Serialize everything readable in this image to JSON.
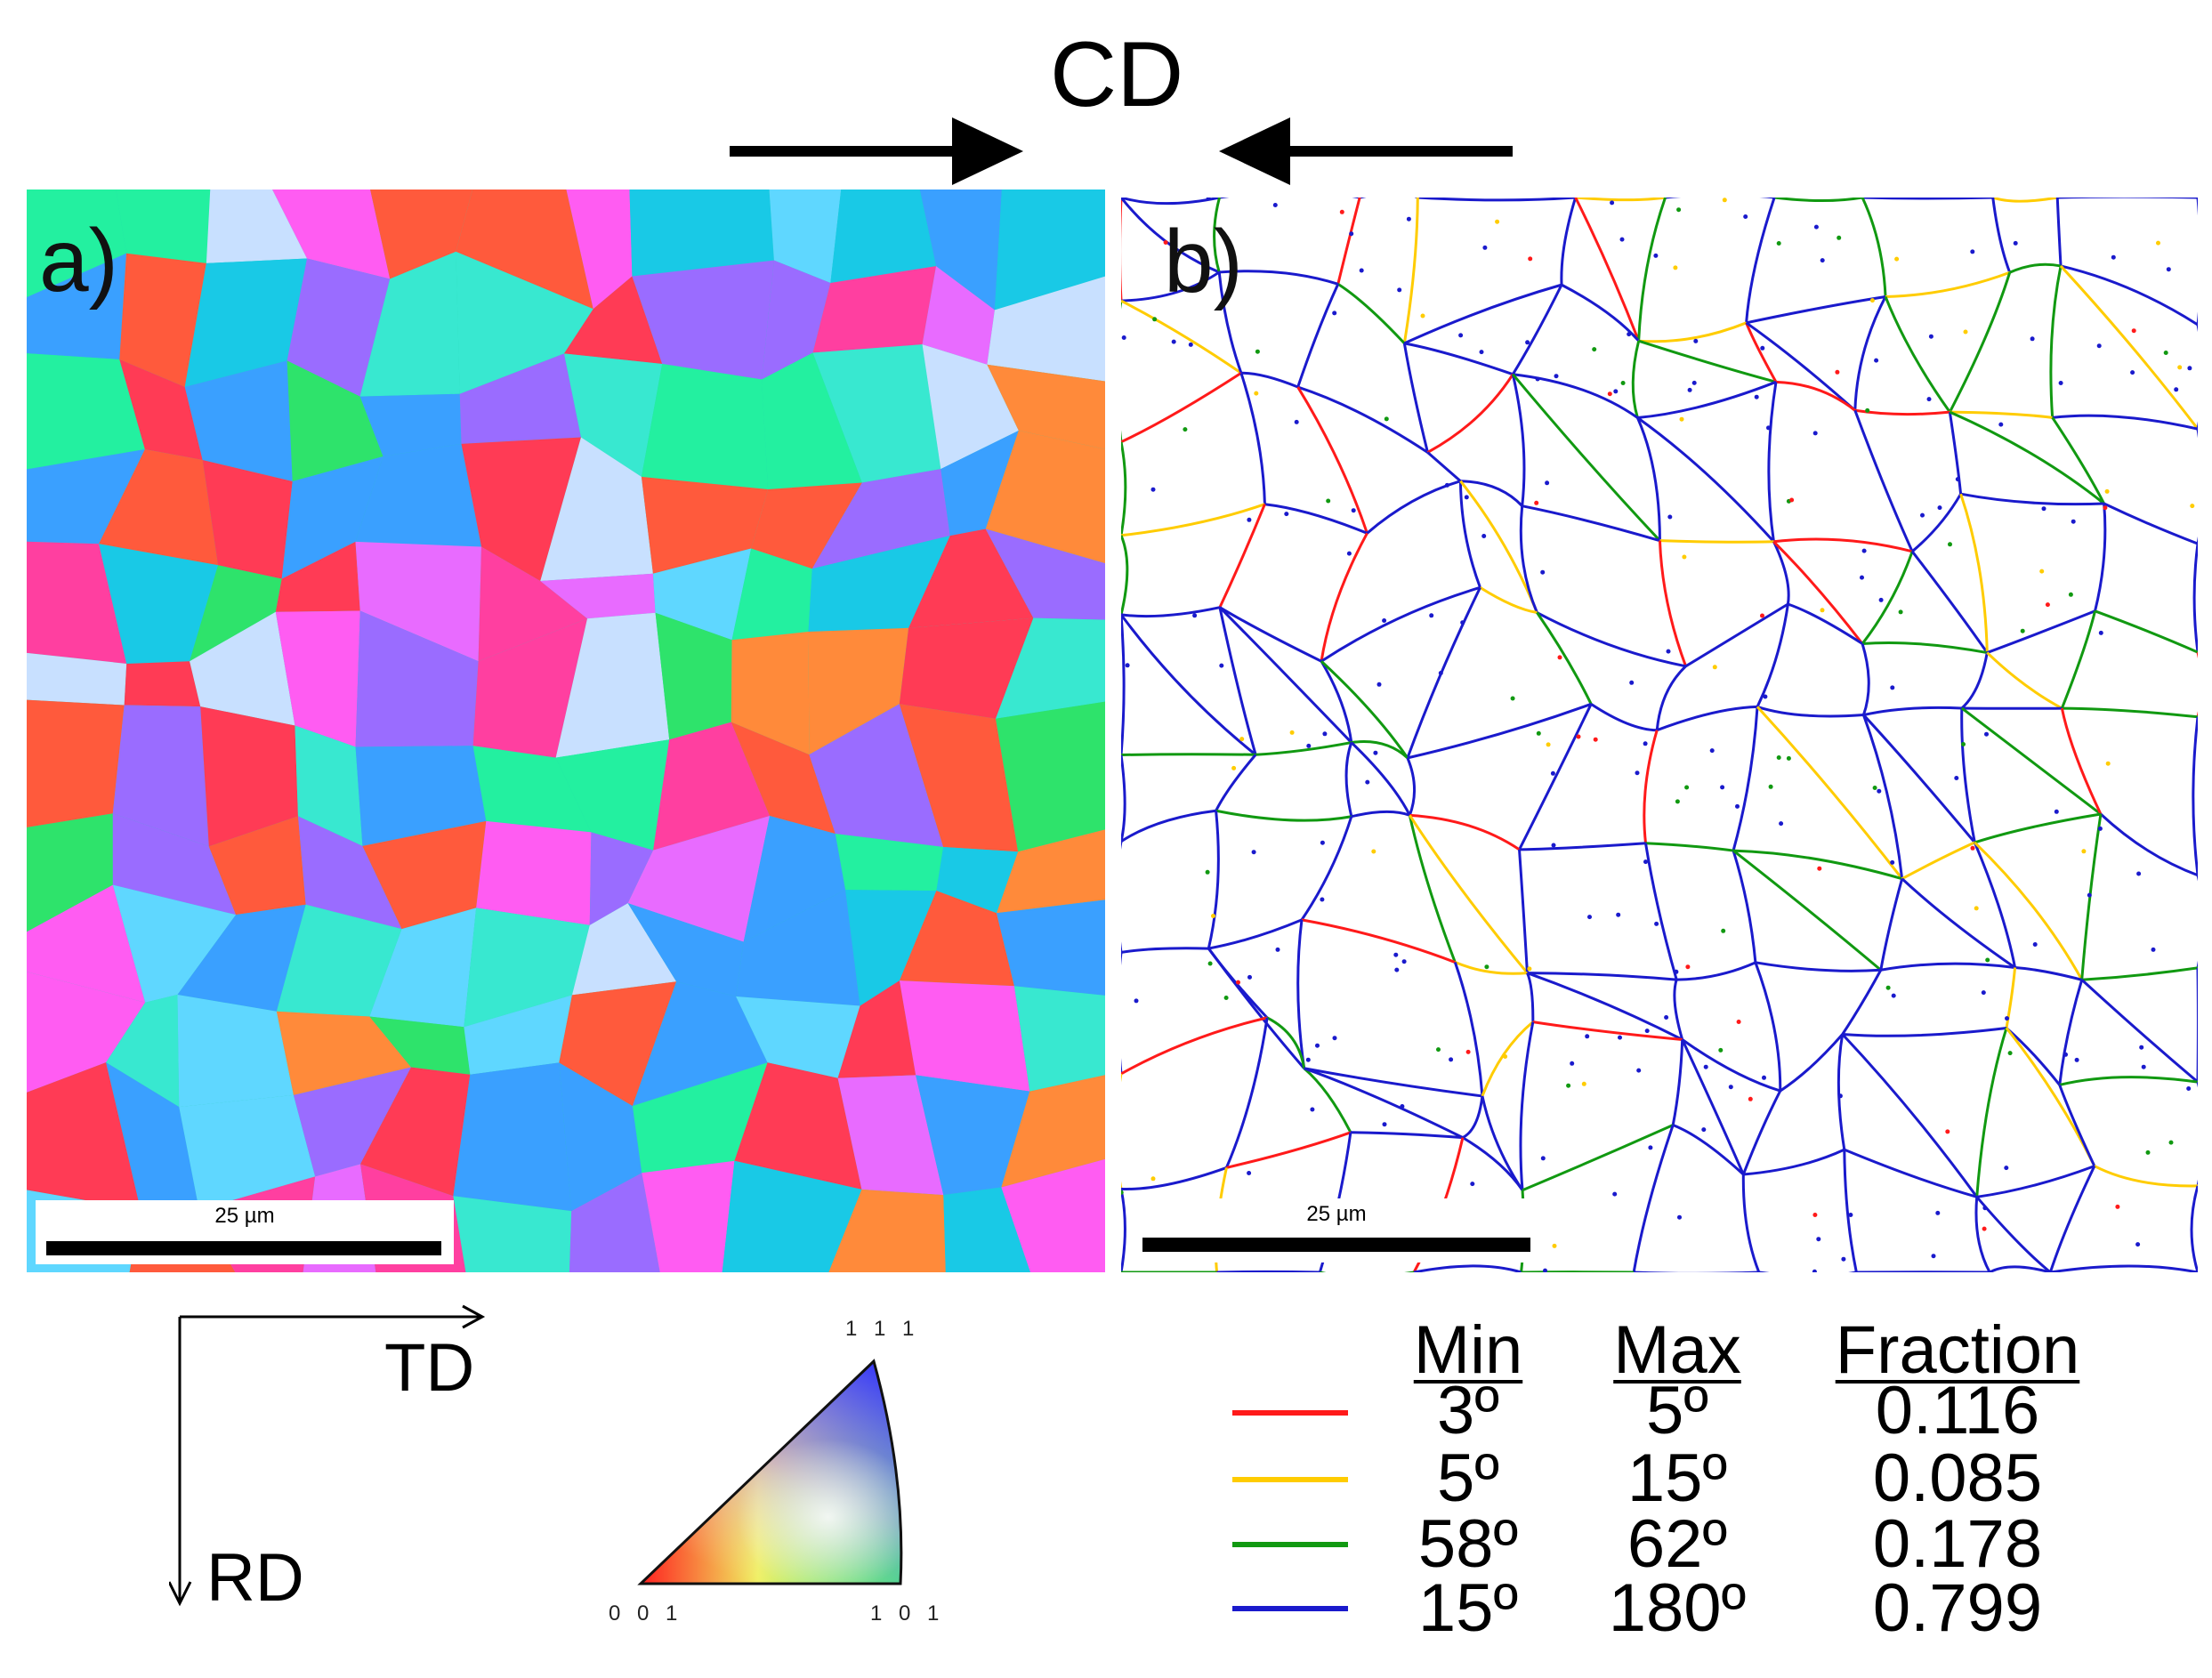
{
  "top_label": "CD",
  "panel_a": {
    "label": "a)",
    "scalebar": "25 µm",
    "grain_colors": [
      "#ff3b55",
      "#ff5a3c",
      "#2ee36b",
      "#38e8d0",
      "#9a6cff",
      "#ff5cf2",
      "#3aa0ff",
      "#23f0a0",
      "#c8e0ff",
      "#ff8a3a",
      "#5fd7ff",
      "#e86bff",
      "#19c9e6",
      "#ff3fa0"
    ]
  },
  "panel_b": {
    "label": "b)",
    "scalebar": "25 µm"
  },
  "axes": {
    "x": "TD",
    "y": "RD"
  },
  "ipf": {
    "top": "1 1 1",
    "bottom_left": "0 0 1",
    "bottom_right": "1 0 1"
  },
  "legend": {
    "headers": {
      "min": "Min",
      "max": "Max",
      "fraction": "Fraction"
    },
    "rows": [
      {
        "color": "#ff1a1a",
        "min": "3º",
        "max": "5º",
        "fraction": "0.116"
      },
      {
        "color": "#ffcc00",
        "min": "5º",
        "max": "15º",
        "fraction": "0.085"
      },
      {
        "color": "#119911",
        "min": "58º",
        "max": "62º",
        "fraction": "0.178"
      },
      {
        "color": "#1a1acc",
        "min": "15º",
        "max": "180º",
        "fraction": "0.799"
      }
    ]
  }
}
